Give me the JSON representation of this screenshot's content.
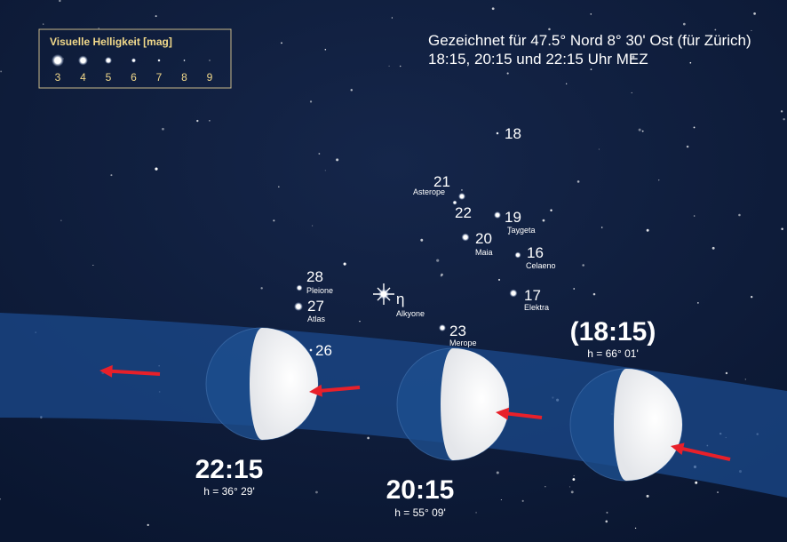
{
  "legend": {
    "title": "Visuelle Helligkeit [mag]",
    "magnitudes": [
      "3",
      "4",
      "5",
      "6",
      "7",
      "8",
      "9"
    ]
  },
  "header": {
    "line1": "Gezeichnet für 47.5° Nord 8° 30' Ost (für Zürich)",
    "line2": "18:15, 20:15 und 22:15 Uhr MEZ"
  },
  "stars": [
    {
      "number": "18"
    },
    {
      "number": "21",
      "name": "Asterope"
    },
    {
      "number": "22"
    },
    {
      "number": "19",
      "name": "Taygeta"
    },
    {
      "number": "20",
      "name": "Maia"
    },
    {
      "number": "16",
      "name": "Celaeno"
    },
    {
      "number": "28",
      "name": "Pleione"
    },
    {
      "number": "27",
      "name": "Atlas"
    },
    {
      "number": "η",
      "name": "Alkyone"
    },
    {
      "number": "17",
      "name": "Elektra"
    },
    {
      "number": "23",
      "name": "Merope"
    },
    {
      "number": "26"
    }
  ],
  "moons": [
    {
      "time": "(18:15)",
      "altitude": "h = 66° 01'"
    },
    {
      "time": "20:15",
      "altitude": "h = 55° 09'"
    },
    {
      "time": "22:15",
      "altitude": "h = 36° 29'"
    }
  ]
}
